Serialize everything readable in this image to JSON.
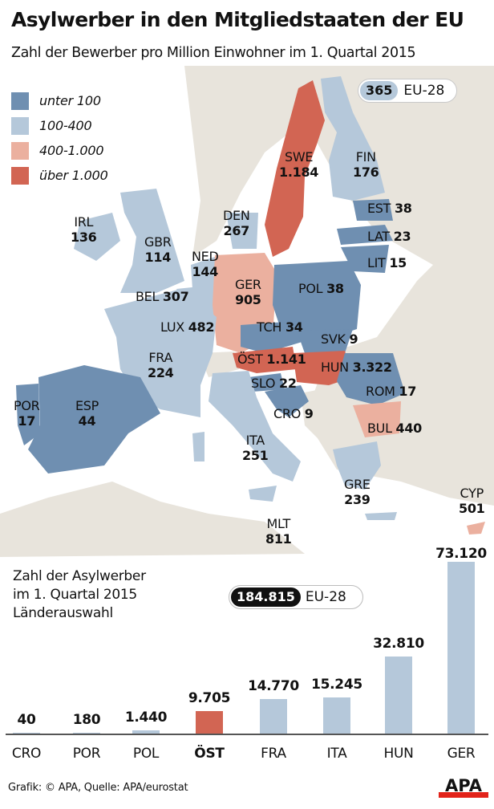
{
  "header": {
    "title": "Asylwerber in den Mitgliedstaaten der EU",
    "subtitle": "Zahl der Bewerber pro Million Einwohner im 1. Quartal 2015"
  },
  "colors": {
    "under_100": "#6f8fb1",
    "r100_400": "#b5c8da",
    "r400_1000": "#ebb09f",
    "over_1000": "#d26553",
    "non_eu_land": "#e8e4dc",
    "sea": "#ffffff",
    "bar_default": "#b5c8da",
    "bar_highlight": "#d26553",
    "logo_red": "#e2231a"
  },
  "legend": {
    "items": [
      {
        "label": "unter 100",
        "color": "#6f8fb1"
      },
      {
        "label": "100-400",
        "color": "#b5c8da"
      },
      {
        "label": "400-1.000",
        "color": "#ebb09f"
      },
      {
        "label": "über 1.000",
        "color": "#d26553"
      }
    ]
  },
  "map": {
    "eu_average": {
      "value": "365",
      "label": "EU-28"
    },
    "countries": [
      {
        "code": "SWE",
        "value": "1.184"
      },
      {
        "code": "FIN",
        "value": "176"
      },
      {
        "code": "EST",
        "value": "38"
      },
      {
        "code": "LAT",
        "value": "23"
      },
      {
        "code": "LIT",
        "value": "15"
      },
      {
        "code": "IRL",
        "value": "136"
      },
      {
        "code": "GBR",
        "value": "114"
      },
      {
        "code": "DEN",
        "value": "267"
      },
      {
        "code": "NED",
        "value": "144"
      },
      {
        "code": "BEL",
        "value": "307"
      },
      {
        "code": "LUX",
        "value": "482"
      },
      {
        "code": "GER",
        "value": "905"
      },
      {
        "code": "POL",
        "value": "38"
      },
      {
        "code": "TCH",
        "value": "34"
      },
      {
        "code": "SVK",
        "value": "9"
      },
      {
        "code": "FRA",
        "value": "224"
      },
      {
        "code": "ÖST",
        "value": "1.141"
      },
      {
        "code": "HUN",
        "value": "3.322"
      },
      {
        "code": "SLO",
        "value": "22"
      },
      {
        "code": "ROM",
        "value": "17"
      },
      {
        "code": "CRO",
        "value": "9"
      },
      {
        "code": "BUL",
        "value": "440"
      },
      {
        "code": "POR",
        "value": "17"
      },
      {
        "code": "ESP",
        "value": "44"
      },
      {
        "code": "ITA",
        "value": "251"
      },
      {
        "code": "GRE",
        "value": "239"
      },
      {
        "code": "CYP",
        "value": "501"
      },
      {
        "code": "MLT",
        "value": "811"
      }
    ]
  },
  "bar_section": {
    "title_lines": [
      "Zahl der Asylwerber",
      "im 1. Quartal 2015",
      "Länderauswahl"
    ],
    "total": {
      "value": "184.815",
      "label": "EU-28"
    }
  },
  "chart_data": [
    {
      "type": "heatmap",
      "title": "Asylwerber in den Mitgliedstaaten der EU",
      "subtitle": "Zahl der Bewerber pro Million Einwohner im 1. Quartal 2015",
      "legend": [
        "unter 100",
        "100-400",
        "400-1.000",
        "über 1.000"
      ],
      "legend_position": "top-left",
      "categories": [
        "SWE",
        "FIN",
        "EST",
        "LAT",
        "LIT",
        "IRL",
        "GBR",
        "DEN",
        "NED",
        "BEL",
        "LUX",
        "GER",
        "POL",
        "TCH",
        "SVK",
        "FRA",
        "ÖST",
        "HUN",
        "SLO",
        "ROM",
        "CRO",
        "BUL",
        "POR",
        "ESP",
        "ITA",
        "GRE",
        "CYP",
        "MLT"
      ],
      "values": [
        1184,
        176,
        38,
        23,
        15,
        136,
        114,
        267,
        144,
        307,
        482,
        905,
        38,
        34,
        9,
        224,
        1141,
        3322,
        22,
        17,
        9,
        440,
        17,
        44,
        251,
        239,
        501,
        811
      ],
      "annotations": [
        "EU-28: 365"
      ]
    },
    {
      "type": "bar",
      "title": "Zahl der Asylwerber im 1. Quartal 2015 Länderauswahl",
      "categories": [
        "CRO",
        "POR",
        "POL",
        "ÖST",
        "FRA",
        "ITA",
        "HUN",
        "GER"
      ],
      "values": [
        40,
        180,
        1440,
        9705,
        14770,
        15245,
        32810,
        73120
      ],
      "value_labels": [
        "40",
        "180",
        "1.440",
        "9.705",
        "14.770",
        "15.245",
        "32.810",
        "73.120"
      ],
      "highlight": "ÖST",
      "xlabel": "",
      "ylabel": "",
      "ylim": [
        0,
        73120
      ],
      "grid": false,
      "annotations": [
        "EU-28: 184.815"
      ]
    }
  ],
  "footer": {
    "source": "Grafik: © APA, Quelle: APA/eurostat",
    "logo_text": "APA"
  }
}
